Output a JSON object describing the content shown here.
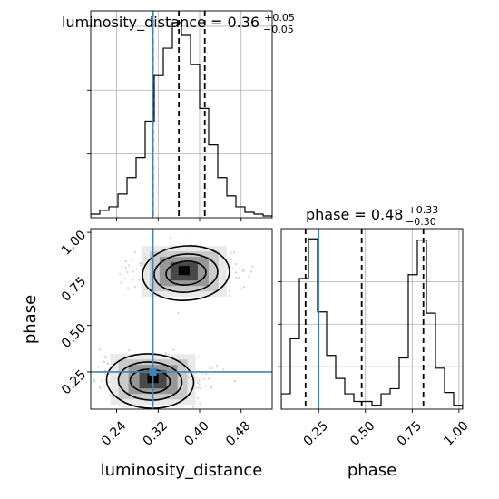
{
  "chart_data": {
    "type": "corner",
    "parameters": [
      "luminosity_distance",
      "phase"
    ],
    "titles": {
      "luminosity_distance": {
        "prefix": "luminosity_distance = 0.36",
        "plus": "+0.05",
        "minus": "−0.05"
      },
      "phase": {
        "prefix": "phase = 0.48",
        "plus": "+0.33",
        "minus": "−0.30"
      }
    },
    "xlabels": {
      "luminosity_distance": "luminosity_distance",
      "phase": "phase"
    },
    "ylabel": "phase",
    "ticks": {
      "luminosity_distance": [
        "0.24",
        "0.32",
        "0.40",
        "0.48"
      ],
      "phase": [
        "0.25",
        "0.50",
        "0.75",
        "1.00"
      ]
    },
    "axis_ranges": {
      "luminosity_distance": [
        0.19,
        0.54
      ],
      "phase": [
        0.05,
        1.02
      ]
    },
    "truth": {
      "luminosity_distance": 0.31,
      "phase": 0.25,
      "color": "#4682b4"
    },
    "quantiles": {
      "luminosity_distance": [
        0.31,
        0.36,
        0.41
      ],
      "phase": [
        0.18,
        0.48,
        0.81
      ]
    },
    "hist_luminosity_distance": {
      "edges": [
        0.19,
        0.2075,
        0.225,
        0.2425,
        0.26,
        0.2775,
        0.295,
        0.3125,
        0.33,
        0.3475,
        0.365,
        0.3825,
        0.4,
        0.4175,
        0.435,
        0.4525,
        0.47,
        0.4875,
        0.505,
        0.5225,
        0.54
      ],
      "counts": [
        2,
        4,
        6,
        13,
        22,
        33,
        53,
        78,
        93,
        107,
        100,
        84,
        60,
        40,
        22,
        12,
        6,
        3,
        2,
        1
      ]
    },
    "hist_phase": {
      "edges": [
        0.05,
        0.0985,
        0.147,
        0.1955,
        0.244,
        0.2925,
        0.341,
        0.3895,
        0.438,
        0.4865,
        0.535,
        0.5835,
        0.632,
        0.6805,
        0.729,
        0.7775,
        0.826,
        0.8745,
        0.923,
        0.9715,
        1.02
      ],
      "counts": [
        12,
        55,
        102,
        133,
        76,
        42,
        24,
        12,
        6,
        6,
        3,
        12,
        16,
        40,
        105,
        132,
        75,
        32,
        13,
        3
      ]
    },
    "modes": [
      {
        "luminosity_distance": 0.37,
        "phase": 0.79
      },
      {
        "luminosity_distance": 0.31,
        "phase": 0.21
      }
    ],
    "grid": true,
    "colors": {
      "hist": "#000000",
      "truth": "#4682b4",
      "quantile": "#000000",
      "scatter": "#c0c0c0"
    }
  }
}
